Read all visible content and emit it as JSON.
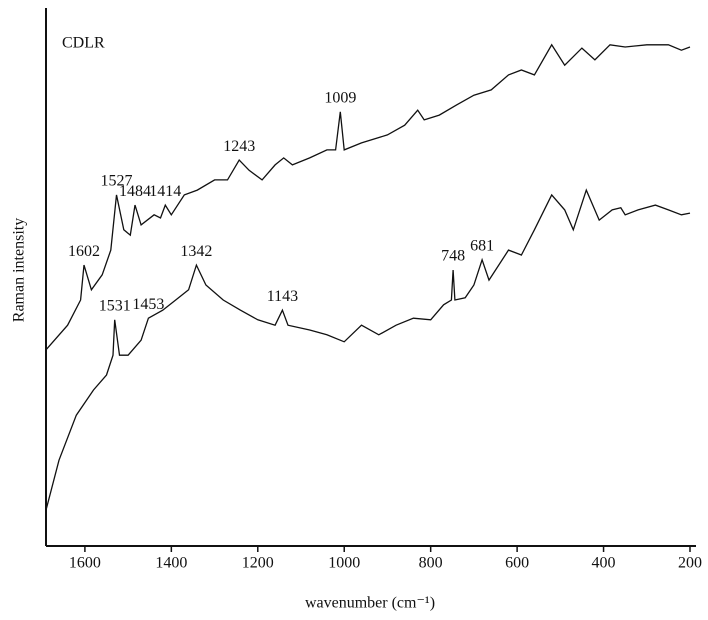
{
  "chart_data": {
    "type": "line",
    "annotation": "CDLR",
    "xlabel": "wavenumber (cm⁻¹)",
    "ylabel": "Raman intensity",
    "xlim": [
      1690,
      200
    ],
    "xticks": [
      1600,
      1400,
      1200,
      1000,
      800,
      600,
      400,
      200
    ],
    "ylim": [
      0,
      100
    ],
    "series": [
      {
        "color": "#111111",
        "x": [
          1690,
          1640,
          1610,
          1602,
          1585,
          1560,
          1540,
          1527,
          1510,
          1495,
          1484,
          1470,
          1440,
          1425,
          1414,
          1400,
          1370,
          1340,
          1300,
          1270,
          1243,
          1220,
          1190,
          1160,
          1140,
          1120,
          1080,
          1040,
          1020,
          1009,
          1000,
          960,
          900,
          860,
          830,
          815,
          780,
          740,
          700,
          660,
          620,
          590,
          560,
          520,
          490,
          450,
          420,
          385,
          350,
          300,
          250,
          220,
          200
        ],
        "values": [
          36.6,
          41.2,
          45.9,
          52.4,
          47.8,
          50.6,
          55.2,
          65.5,
          59.0,
          58.0,
          63.6,
          59.9,
          61.8,
          61.2,
          63.6,
          61.8,
          65.5,
          66.4,
          68.3,
          68.3,
          72.0,
          70.1,
          68.3,
          71.1,
          72.4,
          71.1,
          72.4,
          73.9,
          73.9,
          81.0,
          73.9,
          75.2,
          76.7,
          78.5,
          81.3,
          79.5,
          80.4,
          82.3,
          84.1,
          85.1,
          87.9,
          88.8,
          87.9,
          93.5,
          89.7,
          92.9,
          90.7,
          93.5,
          93.1,
          93.5,
          93.5,
          92.5,
          93.1
        ],
        "peaks": [
          1602,
          1527,
          1484,
          1414,
          1243,
          1009
        ]
      },
      {
        "color": "#111111",
        "x": [
          1690,
          1660,
          1620,
          1580,
          1550,
          1535,
          1531,
          1520,
          1500,
          1470,
          1453,
          1420,
          1390,
          1360,
          1342,
          1320,
          1280,
          1240,
          1200,
          1160,
          1143,
          1130,
          1080,
          1040,
          1000,
          960,
          920,
          880,
          840,
          800,
          770,
          752,
          748,
          744,
          720,
          700,
          681,
          665,
          620,
          590,
          560,
          520,
          490,
          470,
          440,
          410,
          380,
          360,
          350,
          320,
          280,
          250,
          220,
          200
        ],
        "values": [
          6.7,
          16.0,
          24.4,
          29.1,
          31.9,
          35.6,
          42.2,
          35.6,
          35.6,
          38.4,
          42.5,
          44.0,
          45.9,
          47.8,
          52.4,
          48.7,
          45.9,
          44.0,
          42.2,
          41.2,
          44.0,
          41.2,
          40.3,
          39.4,
          38.1,
          41.2,
          39.4,
          41.2,
          42.5,
          42.2,
          45.0,
          45.9,
          51.5,
          45.9,
          46.3,
          48.7,
          53.4,
          49.6,
          55.2,
          54.3,
          59.0,
          65.5,
          62.7,
          59.0,
          66.4,
          60.8,
          62.7,
          63.1,
          61.8,
          62.7,
          63.6,
          62.7,
          61.8,
          62.1
        ],
        "peaks": [
          1531,
          1453,
          1342,
          1143,
          748,
          681
        ]
      }
    ]
  }
}
